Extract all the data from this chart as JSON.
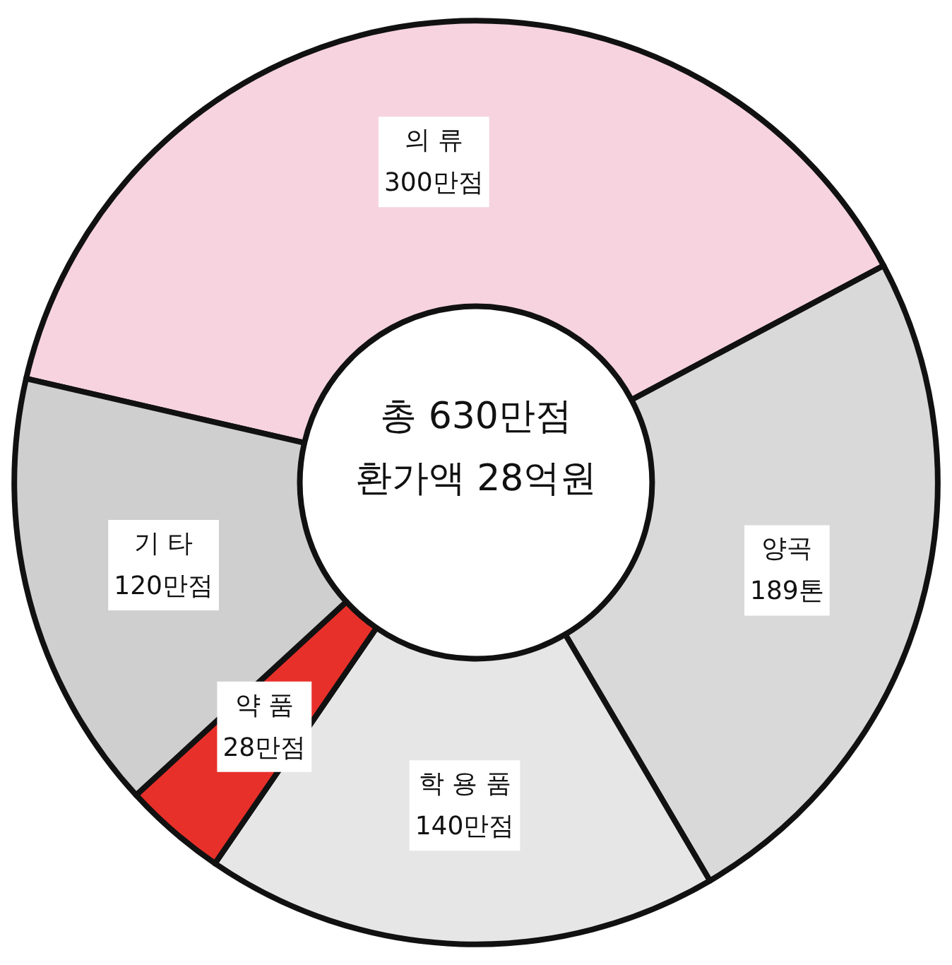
{
  "chart_data": {
    "type": "donut",
    "categories": [
      "의 류",
      "양곡",
      "학 용 품",
      "약 품",
      "기 타"
    ],
    "values": [
      300,
      189,
      140,
      28,
      120
    ],
    "value_labels": [
      "300만점",
      "189톤",
      "140만점",
      "28만점",
      "120만점"
    ],
    "colors": [
      "#f6d3df",
      "#d9d9d9",
      "#e6e6e6",
      "#e8302a",
      "#cfcfcf"
    ],
    "annotations": [
      "총 630만점",
      "환가액 28억원"
    ],
    "legend": false
  }
}
